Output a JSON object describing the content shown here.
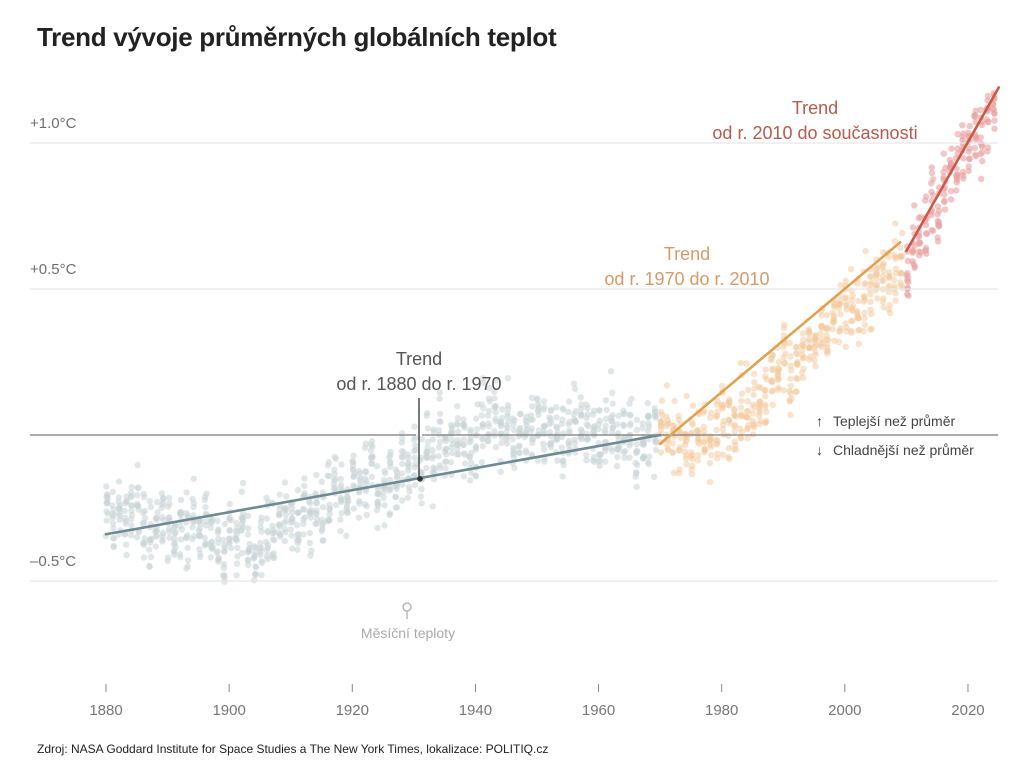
{
  "title": "Trend vývoje průměrných globálních teplot",
  "source": "Zdroj: NASA Goddard Institute for Space Studies a The New York Times, lokalizace: POLITIQ.cz",
  "colors": {
    "grid": "#e6e6e6",
    "zero_line": "#7a7a7a",
    "trend_1880_1970": "#6e8a92",
    "trend_1970_2010": "#e0a150",
    "trend_2010_now": "#c85a48",
    "label_1880_1970": "#555555",
    "label_1970_2010": "#d99a68",
    "label_2010_now": "#b85a4c",
    "dots_early": "#c9d3d6",
    "dots_mid": "#f3c79a",
    "dots_late": "#e9a0a0"
  },
  "chart_data": {
    "type": "scatter",
    "title": "Trend vývoje průměrných globálních teplot",
    "xlabel": "",
    "ylabel": "",
    "xlim": [
      1880,
      2025
    ],
    "ylim": [
      -0.85,
      1.5
    ],
    "grid": true,
    "x_ticks": [
      1880,
      1900,
      1920,
      1940,
      1960,
      1980,
      2000,
      2020
    ],
    "y_ticks": [
      {
        "value": 1.0,
        "label": "+1.0°C"
      },
      {
        "value": 0.5,
        "label": "+0.5°C"
      },
      {
        "value": -0.5,
        "label": "–0.5°C"
      }
    ],
    "baseline": 0,
    "series": [
      {
        "name": "Měsíční teploty",
        "type": "scatter",
        "note": "monthly anomalies"
      },
      {
        "name": "Trend od r. 1880 do r. 1970",
        "type": "line",
        "x": [
          1880,
          1970
        ],
        "y": [
          -0.34,
          0.0
        ]
      },
      {
        "name": "Trend od r. 1970 do r. 2010",
        "type": "line",
        "x": [
          1970,
          2009
        ],
        "y": [
          -0.03,
          0.66
        ]
      },
      {
        "name": "Trend od r. 2010 do současnosti",
        "type": "line",
        "x": [
          2010,
          2025
        ],
        "y": [
          0.63,
          1.19
        ]
      }
    ],
    "annotations": {
      "trend1": {
        "line1": "Trend",
        "line2": "od r. 1880 do r. 1970",
        "point": {
          "x": 1931,
          "y": -0.15
        }
      },
      "trend2": {
        "line1": "Trend",
        "line2": "od r. 1970 do r. 2010"
      },
      "trend3": {
        "line1": "Trend",
        "line2": "od r. 2010 do současnosti"
      },
      "monthly": "Měsíční teploty",
      "warmer": "Teplejší než průměr",
      "colder": "Chladnější než průměr",
      "warmer_arrow": "↑",
      "colder_arrow": "↓"
    }
  }
}
